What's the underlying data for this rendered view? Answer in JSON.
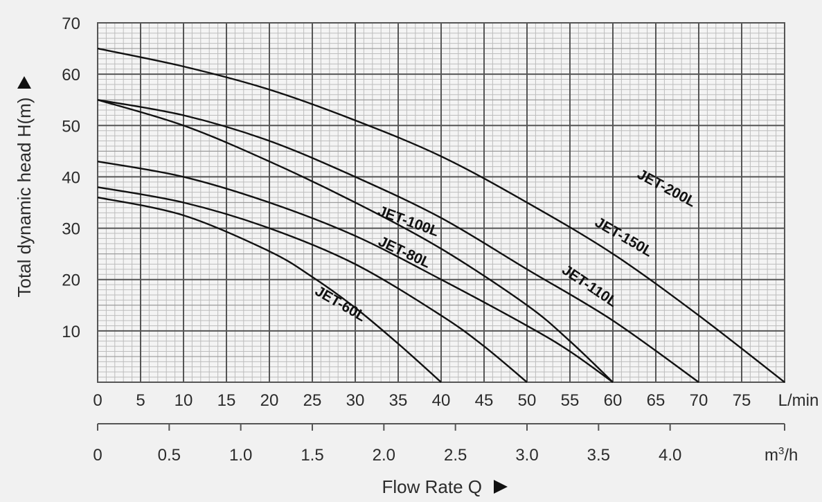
{
  "chart_data": {
    "type": "line",
    "ylabel": "Total dynamic head H(m)",
    "xlabel": "Flow Rate Q",
    "xlim": [
      0,
      80
    ],
    "ylim": [
      0,
      70
    ],
    "grid": true,
    "x_ticks": [
      "0",
      "5",
      "10",
      "15",
      "20",
      "25",
      "30",
      "35",
      "40",
      "45",
      "50",
      "55",
      "60",
      "65",
      "70",
      "75"
    ],
    "x_unit": "L/min",
    "x2_ticks": [
      "0",
      "0.5",
      "1.0",
      "1.5",
      "2.0",
      "2.5",
      "3.0",
      "3.5",
      "4.0"
    ],
    "x2_values": [
      0,
      0.5,
      1.0,
      1.5,
      2.0,
      2.5,
      3.0,
      3.5,
      4.0
    ],
    "x2_unit_base": "m",
    "x2_unit_exp": "3",
    "x2_unit_tail": "/h",
    "y_ticks": [
      "10",
      "20",
      "30",
      "40",
      "50",
      "60",
      "70"
    ],
    "y_values": [
      10,
      20,
      30,
      40,
      50,
      60,
      70
    ],
    "series": [
      {
        "name": "JET-60L",
        "x": [
          0,
          10,
          20,
          25,
          30,
          35,
          40
        ],
        "y": [
          36,
          32.5,
          25.5,
          20.5,
          14.5,
          7.5,
          0
        ],
        "label_x": 28,
        "label_y": 14.5,
        "label_angle": 30
      },
      {
        "name": "JET-80L",
        "x": [
          0,
          10,
          20,
          30,
          40,
          45,
          50
        ],
        "y": [
          38,
          35,
          30,
          23,
          13,
          7,
          0
        ],
        "label_x": 35.5,
        "label_y": 24.5,
        "label_angle": 25
      },
      {
        "name": "JET-100L",
        "x": [
          0,
          10,
          20,
          30,
          40,
          50,
          55,
          60
        ],
        "y": [
          43,
          40,
          35,
          28.5,
          20,
          11,
          6,
          0
        ],
        "label_x": 36,
        "label_y": 30.5,
        "label_angle": 20
      },
      {
        "name": "JET-110L",
        "x": [
          0,
          10,
          20,
          30,
          40,
          50,
          55,
          60
        ],
        "y": [
          55,
          50,
          43,
          35,
          26,
          15,
          8,
          0
        ],
        "label_x": 57,
        "label_y": 18,
        "label_angle": 34
      },
      {
        "name": "JET-150L",
        "x": [
          0,
          10,
          20,
          30,
          40,
          50,
          60,
          70
        ],
        "y": [
          55,
          52,
          47,
          40,
          32,
          22,
          12,
          0
        ],
        "label_x": 61,
        "label_y": 27.5,
        "label_angle": 30
      },
      {
        "name": "JET-200L",
        "x": [
          0,
          10,
          20,
          30,
          40,
          50,
          60,
          70,
          80
        ],
        "y": [
          65,
          61.5,
          57,
          51,
          44,
          35,
          25,
          13,
          0
        ],
        "label_x": 66,
        "label_y": 37,
        "label_angle": 28
      }
    ],
    "colors": {
      "grid_major": "#555555",
      "grid_minor": "#bdbdbd",
      "curve": "#111111",
      "background": "#f1f1f1",
      "text": "#2b2b2b"
    }
  }
}
